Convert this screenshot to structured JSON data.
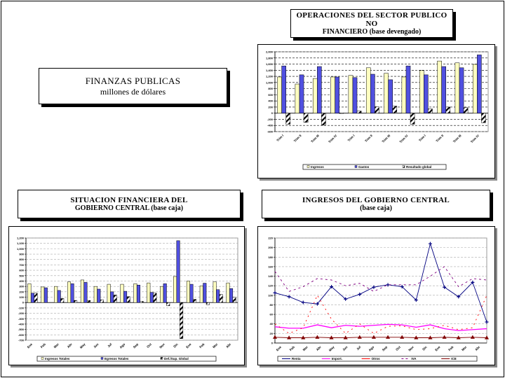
{
  "titles": {
    "main": {
      "line1": "FINANZAS PUBLICAS",
      "line2": "millones de dólares"
    },
    "spnf": {
      "line1": "OPERACIONES DEL SECTOR PUBLICO NO",
      "line2": "FINANCIERO (base devengado)"
    },
    "gc": {
      "line1": "SITUACION FINANCIERA DEL",
      "line2": "GOBIERNO CENTRAL (base caja)"
    },
    "ing": {
      "line1": "INGRESOS DEL GOBIERNO CENTRAL",
      "line2": "(base caja)"
    }
  },
  "colors": {
    "yellow": "#ffffc0",
    "blue": "#5050e0",
    "navy": "#000080",
    "magenta": "#ff00ff",
    "red": "#ff0000",
    "purple": "#800080",
    "darkred": "#800000"
  },
  "chart_data": [
    {
      "id": "spnf",
      "type": "bar",
      "categories": [
        "Trim I",
        "Trim II",
        "Trim III",
        "Trim IV",
        "Trim I",
        "Trim II",
        "Trim III",
        "Trim IV",
        "Trim I",
        "Trim II",
        "Trim III",
        "Trim IV"
      ],
      "ylim": [
        -600,
        2000
      ],
      "ystep": 200,
      "ticklabels": [
        "-600",
        "-400",
        "-200",
        "0",
        "200",
        "400",
        "600",
        "800",
        "1,000",
        "1,200",
        "1,400",
        "1,600",
        "1,800",
        "2,000"
      ],
      "grid": true,
      "legend_position": "bottom",
      "series": [
        {
          "name": "Ingresos",
          "style": "yellow",
          "values": [
            1180,
            950,
            1130,
            1180,
            1230,
            1480,
            1300,
            1180,
            1390,
            1700,
            1640,
            1590
          ]
        },
        {
          "name": "Gastos",
          "style": "blue",
          "values": [
            1540,
            1250,
            1520,
            1180,
            1160,
            1270,
            1090,
            1540,
            1250,
            1520,
            1480,
            1900
          ]
        },
        {
          "name": "Resultado global",
          "style": "hatch",
          "values": [
            -360,
            -300,
            -390,
            10,
            70,
            210,
            230,
            -360,
            140,
            200,
            180,
            -310
          ]
        }
      ]
    },
    {
      "id": "gc",
      "type": "bar",
      "categories": [
        "Ene",
        "Feb",
        "Mar",
        "Abr",
        "May",
        "Jun",
        "Jul",
        "Ago",
        "Sep",
        "Oct",
        "Nov",
        "Dic",
        "Ene",
        "Feb",
        "Mar",
        "Abr"
      ],
      "ylim": [
        -700,
        1200
      ],
      "ystep": 100,
      "ticklabels": [
        "-700",
        "-600",
        "-500",
        "-400",
        "-300",
        "-200",
        "-100",
        "0",
        "100",
        "200",
        "300",
        "400",
        "500",
        "600",
        "700",
        "800",
        "900",
        "1,000",
        "1,100",
        "1,200"
      ],
      "grid": true,
      "legend_position": "bottom",
      "series": [
        {
          "name": "Ingresos Totales",
          "style": "yellow",
          "values": [
            350,
            290,
            300,
            385,
            420,
            300,
            340,
            340,
            350,
            365,
            300,
            485,
            400,
            310,
            385,
            365
          ]
        },
        {
          "name": "Egresos Totales",
          "style": "blue",
          "values": [
            175,
            275,
            225,
            350,
            375,
            250,
            200,
            210,
            325,
            190,
            350,
            1150,
            340,
            360,
            240,
            260
          ]
        },
        {
          "name": "Def./Sup. Global",
          "style": "hatch",
          "values": [
            175,
            0,
            75,
            40,
            40,
            50,
            140,
            110,
            25,
            175,
            -60,
            -670,
            60,
            -40,
            150,
            100
          ]
        }
      ]
    },
    {
      "id": "ing",
      "type": "line",
      "categories": [
        "Ene",
        "Feb",
        "Mar",
        "Abr",
        "May",
        "Jun",
        "Jul",
        "Ago",
        "Sep",
        "Oct",
        "Nov",
        "Dic",
        "Ene",
        "Feb",
        "Mar",
        "Abr"
      ],
      "ylim": [
        0,
        220
      ],
      "ystep": 20,
      "ticklabels": [
        "0",
        "20",
        "40",
        "60",
        "80",
        "100",
        "120",
        "140",
        "160",
        "180",
        "200",
        "220"
      ],
      "grid": true,
      "legend_position": "bottom",
      "series": [
        {
          "name": "Renta",
          "style": "navy",
          "values": [
            105,
            97,
            85,
            82,
            118,
            92,
            102,
            117,
            122,
            118,
            90,
            208,
            117,
            97,
            127,
            44
          ]
        },
        {
          "name": "Import.",
          "style": "magenta",
          "values": [
            34,
            31,
            31,
            38,
            32,
            37,
            35,
            37,
            39,
            38,
            33,
            38,
            30,
            26,
            28,
            30
          ]
        },
        {
          "name": "Otros",
          "style": "red",
          "values": [
            40,
            20,
            32,
            100,
            50,
            20,
            40,
            20,
            35,
            36,
            28,
            30,
            37,
            28,
            32,
            100
          ]
        },
        {
          "name": "IVA",
          "style": "purple",
          "values": [
            150,
            108,
            118,
            135,
            132,
            120,
            125,
            108,
            122,
            122,
            122,
            140,
            160,
            118,
            135,
            132
          ]
        },
        {
          "name": "ICE",
          "style": "darkred",
          "values": [
            12,
            11,
            11,
            12,
            11,
            11,
            12,
            12,
            12,
            12,
            11,
            11,
            12,
            11,
            12,
            11
          ]
        }
      ]
    }
  ]
}
